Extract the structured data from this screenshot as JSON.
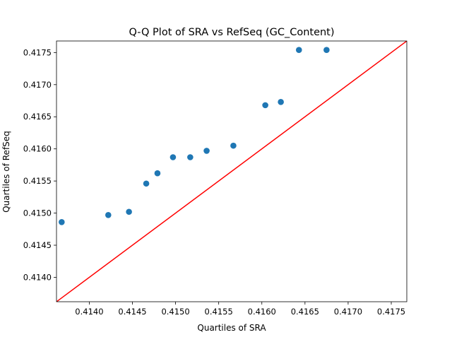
{
  "chart_data": {
    "type": "scatter",
    "title": "Q-Q Plot of SRA vs RefSeq (GC_Content)",
    "xlabel": "Quartiles of SRA",
    "ylabel": "Quartiles of RefSeq",
    "xlim": [
      0.41362,
      0.41768
    ],
    "ylim": [
      0.41362,
      0.41768
    ],
    "xticks": [
      0.414,
      0.4145,
      0.415,
      0.4155,
      0.416,
      0.4165,
      0.417,
      0.4175
    ],
    "yticks": [
      0.414,
      0.4145,
      0.415,
      0.4155,
      0.416,
      0.4165,
      0.417,
      0.4175
    ],
    "xtick_labels": [
      "0.4140",
      "0.4145",
      "0.4150",
      "0.4155",
      "0.4160",
      "0.4165",
      "0.4170",
      "0.4175"
    ],
    "ytick_labels": [
      "0.4140",
      "0.4145",
      "0.4150",
      "0.4155",
      "0.4160",
      "0.4165",
      "0.4170",
      "0.4175"
    ],
    "grid": false,
    "points": {
      "x": [
        0.41368,
        0.41422,
        0.41446,
        0.41466,
        0.41479,
        0.41497,
        0.41517,
        0.41536,
        0.41567,
        0.41604,
        0.41622,
        0.41643,
        0.41675
      ],
      "y": [
        0.41486,
        0.41497,
        0.41502,
        0.41546,
        0.41562,
        0.41587,
        0.41587,
        0.41597,
        0.41605,
        0.41668,
        0.41673,
        0.41754,
        0.41754
      ],
      "color": "#1f77b4"
    },
    "reference_line": {
      "type": "y=x",
      "color": "#ff0000"
    }
  }
}
